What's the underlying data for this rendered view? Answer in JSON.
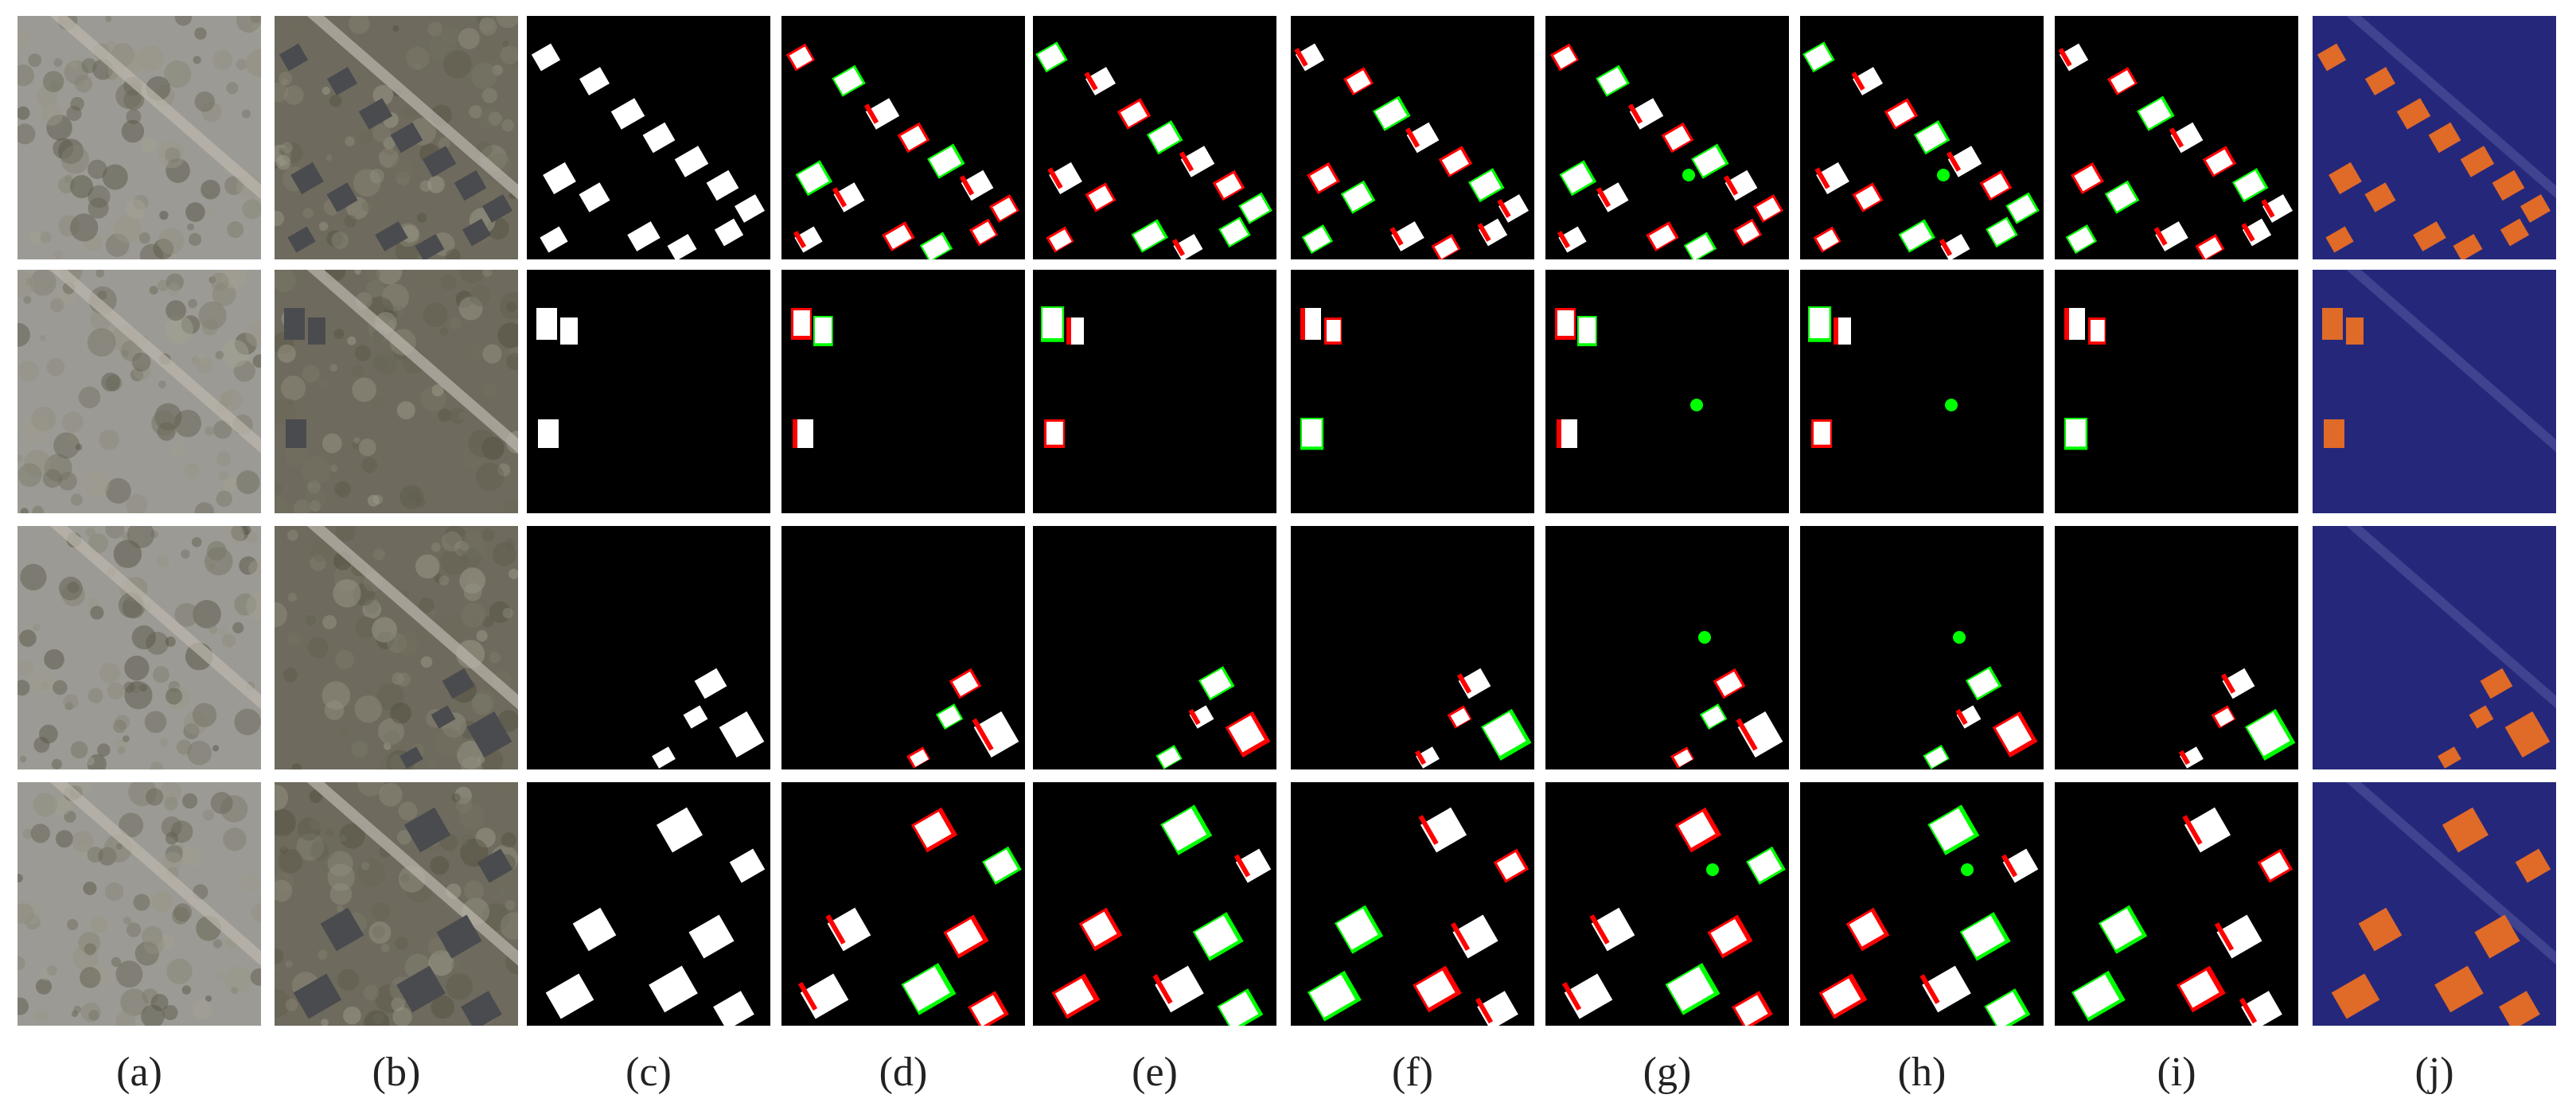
{
  "figure": {
    "panel_labels": [
      "(a)",
      "(b)",
      "(c)",
      "(d)",
      "(e)",
      "(f)",
      "(g)",
      "(h)",
      "(i)",
      "(j)"
    ],
    "rows": 4,
    "colors": {
      "background": "#ffffff",
      "mask_background": "#000000",
      "building": "#ffffff",
      "false_negative": "#ff0000",
      "false_positive": "#00ff00",
      "overlay_base": "#25287a",
      "overlay_building": "#e06a28",
      "pre_image_tone": "#9c9a94",
      "post_image_tone": "#6e6a5e"
    }
  }
}
